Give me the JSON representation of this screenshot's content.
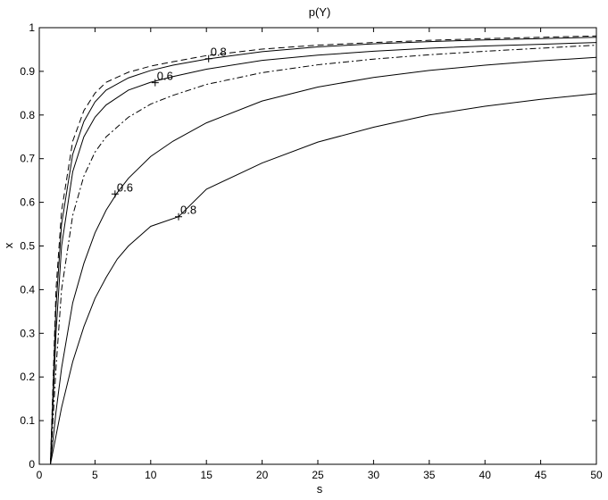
{
  "chart_data": {
    "type": "line",
    "title": "p(Y)",
    "xlabel": "s",
    "ylabel": "x",
    "xlim": [
      0,
      50
    ],
    "ylim": [
      0,
      1
    ],
    "xticks": [
      0,
      5,
      10,
      15,
      20,
      25,
      30,
      35,
      40,
      45,
      50
    ],
    "yticks": [
      0,
      0.1,
      0.2,
      0.3,
      0.4,
      0.5,
      0.6,
      0.7,
      0.8,
      0.9,
      1
    ],
    "grid": false,
    "legend": "none",
    "series": [
      {
        "style": "dashed",
        "x": [
          1,
          1.5,
          2,
          3,
          4,
          5,
          6,
          8,
          10,
          12,
          15,
          20,
          25,
          30,
          35,
          40,
          45,
          50
        ],
        "y": [
          0,
          0.4,
          0.58,
          0.74,
          0.81,
          0.85,
          0.875,
          0.898,
          0.912,
          0.922,
          0.936,
          0.951,
          0.96,
          0.966,
          0.971,
          0.975,
          0.978,
          0.981
        ]
      },
      {
        "style": "solid",
        "x": [
          1,
          1.5,
          2,
          3,
          4,
          5,
          6,
          8,
          10,
          12,
          15,
          20,
          25,
          30,
          35,
          40,
          45,
          50
        ],
        "y": [
          0,
          0.36,
          0.55,
          0.71,
          0.785,
          0.83,
          0.857,
          0.885,
          0.902,
          0.914,
          0.928,
          0.945,
          0.956,
          0.963,
          0.968,
          0.972,
          0.975,
          0.978
        ]
      },
      {
        "style": "solid",
        "x": [
          1,
          1.5,
          2,
          3,
          4,
          5,
          6,
          8,
          10,
          12,
          15,
          20,
          25,
          30,
          35,
          40,
          45,
          50
        ],
        "y": [
          0,
          0.3,
          0.5,
          0.67,
          0.75,
          0.795,
          0.823,
          0.857,
          0.875,
          0.888,
          0.905,
          0.925,
          0.937,
          0.946,
          0.953,
          0.958,
          0.962,
          0.966
        ]
      },
      {
        "style": "dashdot",
        "x": [
          1,
          1.5,
          2,
          3,
          4,
          5,
          6,
          8,
          10,
          12,
          15,
          20,
          25,
          30,
          35,
          40,
          45,
          50
        ],
        "y": [
          0,
          0.22,
          0.4,
          0.57,
          0.66,
          0.715,
          0.75,
          0.795,
          0.825,
          0.845,
          0.87,
          0.897,
          0.915,
          0.928,
          0.938,
          0.946,
          0.953,
          0.96
        ]
      },
      {
        "style": "solid",
        "x": [
          1,
          1.5,
          2,
          3,
          4,
          5,
          6,
          7,
          8,
          10,
          12,
          15,
          20,
          25,
          30,
          35,
          40,
          45,
          50
        ],
        "y": [
          0,
          0.12,
          0.22,
          0.37,
          0.46,
          0.53,
          0.582,
          0.622,
          0.655,
          0.705,
          0.74,
          0.782,
          0.832,
          0.864,
          0.886,
          0.902,
          0.914,
          0.924,
          0.932
        ]
      },
      {
        "style": "solid",
        "x": [
          1,
          2,
          3,
          4,
          5,
          6,
          7,
          8,
          10,
          12.5,
          15,
          20,
          25,
          30,
          35,
          40,
          45,
          50
        ],
        "y": [
          0,
          0.13,
          0.235,
          0.315,
          0.38,
          0.428,
          0.47,
          0.5,
          0.545,
          0.567,
          0.63,
          0.69,
          0.738,
          0.772,
          0.8,
          0.82,
          0.836,
          0.849
        ]
      }
    ],
    "annotations": [
      {
        "text": "0.8",
        "x": 15.2,
        "y": 0.929
      },
      {
        "text": "0.6",
        "x": 10.4,
        "y": 0.874
      },
      {
        "text": "0.6",
        "x": 6.8,
        "y": 0.619
      },
      {
        "text": "0.8",
        "x": 12.5,
        "y": 0.567
      }
    ]
  }
}
